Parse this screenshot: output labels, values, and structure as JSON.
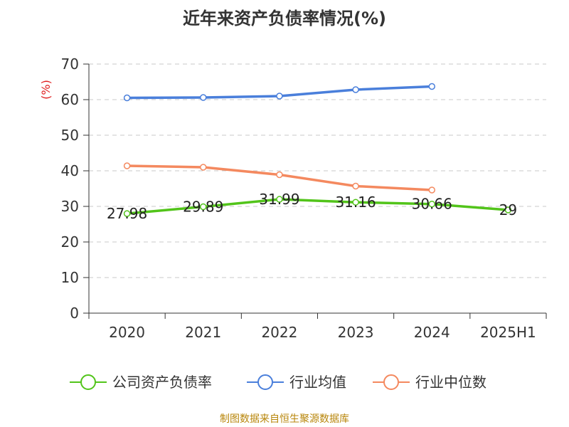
{
  "chart_data": {
    "type": "line",
    "title": "近年来资产负债率情况(%)",
    "ylabel": "(%)",
    "ylim": [
      0,
      70
    ],
    "yticks": [
      0,
      10,
      20,
      30,
      40,
      50,
      60,
      70
    ],
    "categories": [
      "2020",
      "2021",
      "2022",
      "2023",
      "2024",
      "2025H1"
    ],
    "grid": true,
    "legend_position": "bottom",
    "series": [
      {
        "name": "公司资产负债率",
        "color": "#52c41a",
        "labeled": true,
        "values": [
          27.98,
          29.89,
          31.99,
          31.16,
          30.66,
          29
        ]
      },
      {
        "name": "行业均值",
        "color": "#4a7fdb",
        "labeled": false,
        "values": [
          60.5,
          60.6,
          61.0,
          62.8,
          63.7,
          null
        ]
      },
      {
        "name": "行业中位数",
        "color": "#f4895f",
        "labeled": false,
        "values": [
          41.4,
          41.0,
          38.9,
          35.7,
          34.6,
          null
        ]
      }
    ]
  },
  "source": "制图数据来自恒生聚源数据库"
}
